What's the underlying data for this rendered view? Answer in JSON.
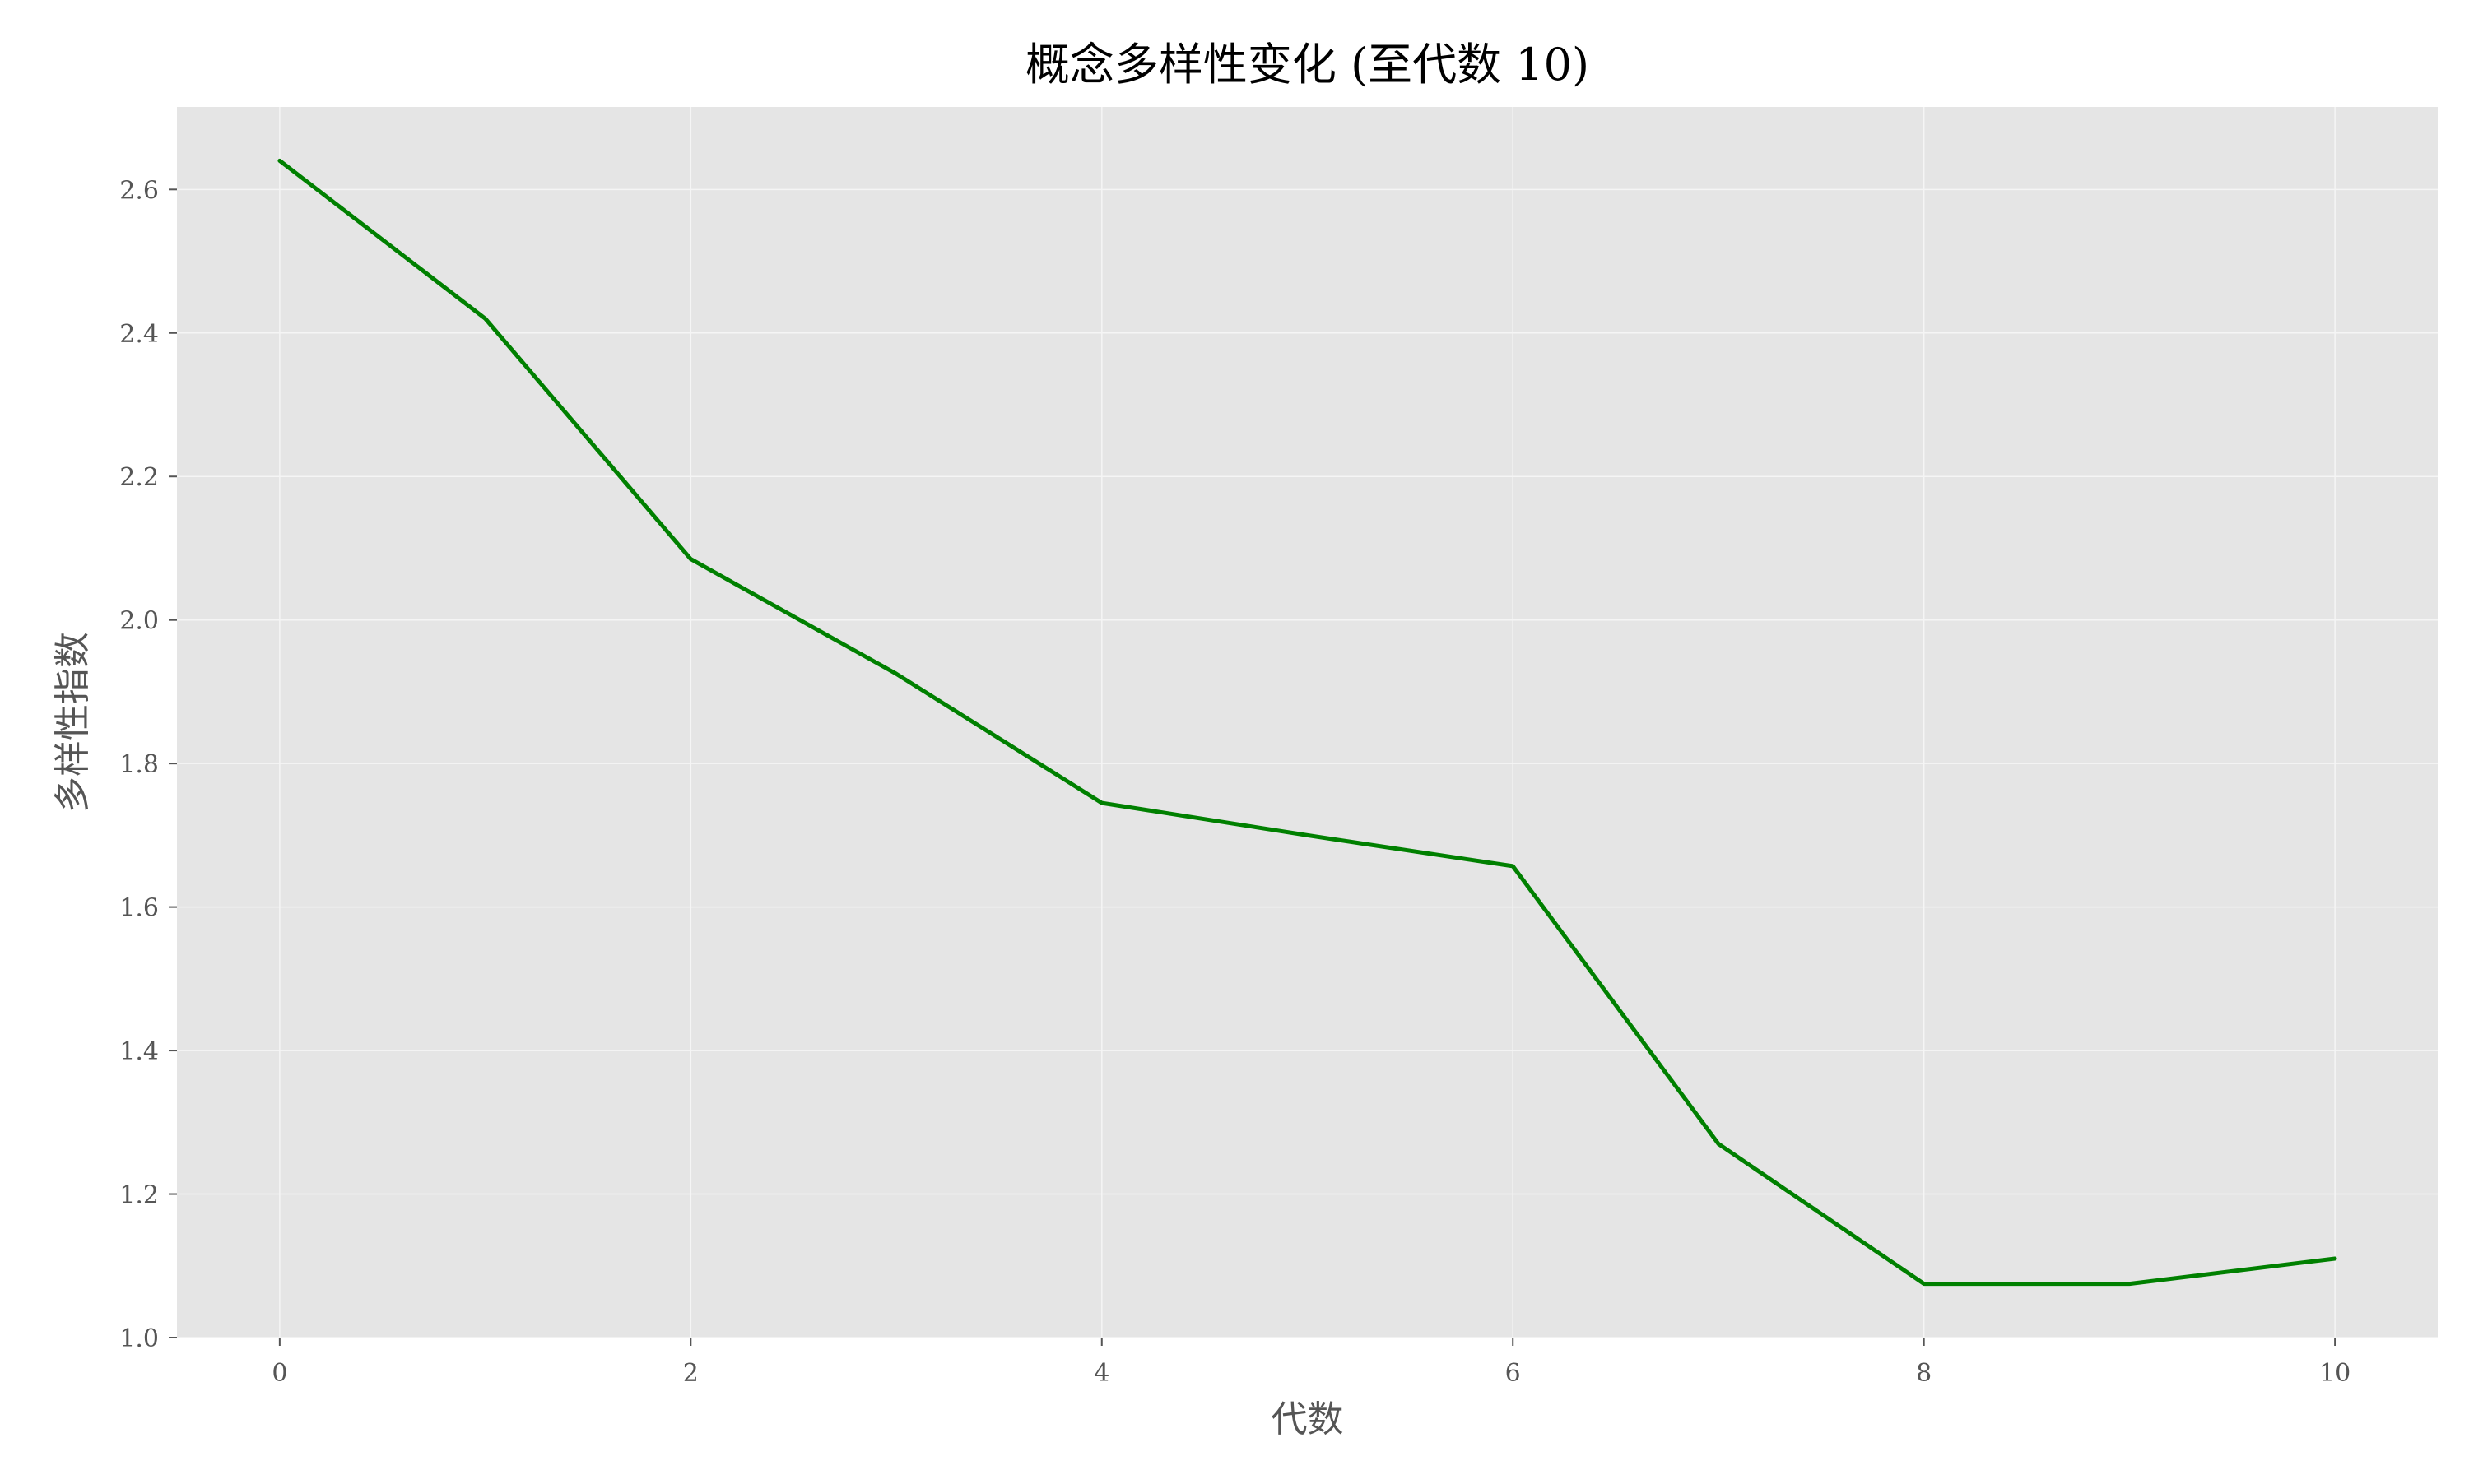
{
  "chart_data": {
    "type": "line",
    "title": "概念多样性变化 (至代数 10)",
    "xlabel": "代数",
    "ylabel": "多样性指数",
    "x": [
      0,
      1,
      2,
      3,
      4,
      5,
      6,
      7,
      8,
      9,
      10
    ],
    "series": [
      {
        "values": [
          2.64,
          2.42,
          2.085,
          1.925,
          1.745,
          1.7,
          1.657,
          1.27,
          1.075,
          1.075,
          1.11
        ],
        "color": "#008000"
      }
    ],
    "xlim": [
      -0.5,
      10.5
    ],
    "ylim": [
      1.0,
      2.715
    ],
    "xticks": [
      0,
      2,
      4,
      6,
      8,
      10
    ],
    "xtick_labels": [
      "0",
      "2",
      "4",
      "6",
      "8",
      "10"
    ],
    "yticks": [
      1.0,
      1.2,
      1.4,
      1.6,
      1.8,
      2.0,
      2.2,
      2.4,
      2.6
    ],
    "ytick_labels": [
      "1.0",
      "1.2",
      "1.4",
      "1.6",
      "1.8",
      "2.0",
      "2.2",
      "2.4",
      "2.6"
    ],
    "grid": true,
    "legend": "none",
    "style": {
      "plot_background": "#e5e5e5",
      "grid_color": "#f5f5f5",
      "tick_color": "#555555"
    }
  }
}
